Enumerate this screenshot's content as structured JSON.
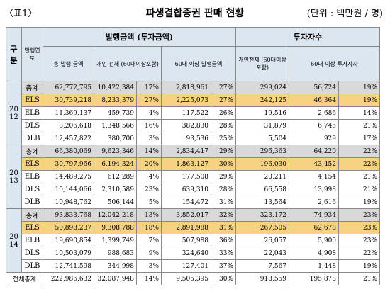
{
  "header": {
    "label": "〈표1〉",
    "title": "파생결합증권 판매 현황",
    "unit": "(단위 : 백만원 / 명)"
  },
  "table": {
    "head": {
      "category": "구분",
      "year": "발행연도",
      "amount": "발행금액 (투자금액)",
      "investors": "투자자수",
      "total_amount": "총 발행 금액",
      "individual_all": "개인 전체 (60대이상포함)",
      "over60_amount": "60대 이상 발행금액",
      "individual_investors": "개인전체 (60대이상포함)",
      "over60_investors": "60대 이상 투자자자"
    },
    "groups": [
      {
        "year": "2012",
        "rows": [
          {
            "type": "총계",
            "cells": [
              "62,772,795",
              "10,422,384",
              "17%",
              "2,818,961",
              "27%",
              "299,024",
              "56,724",
              "19%"
            ]
          },
          {
            "type": "ELS",
            "cells": [
              "30,739,218",
              "8,233,379",
              "27%",
              "2,225,073",
              "27%",
              "242,125",
              "46,364",
              "19%"
            ]
          },
          {
            "type": "ELB",
            "cells": [
              "11,369,137",
              "459,739",
              "4%",
              "117,522",
              "26%",
              "19,516",
              "2,686",
              "14%"
            ]
          },
          {
            "type": "DLS",
            "cells": [
              "8,206,618",
              "1,348,566",
              "16%",
              "382,830",
              "28%",
              "31,879",
              "6,745",
              "21%"
            ]
          },
          {
            "type": "DLB",
            "cells": [
              "12,457,822",
              "380,700",
              "3%",
              "93,536",
              "25%",
              "5,504",
              "929",
              "17%"
            ]
          }
        ]
      },
      {
        "year": "2013",
        "rows": [
          {
            "type": "총계",
            "cells": [
              "66,380,069",
              "9,623,346",
              "14%",
              "2,834,417",
              "29%",
              "296,363",
              "64,220",
              "22%"
            ]
          },
          {
            "type": "ELS",
            "cells": [
              "30,797,966",
              "6,194,324",
              "20%",
              "1,863,127",
              "30%",
              "196,030",
              "43,452",
              "22%"
            ]
          },
          {
            "type": "ELB",
            "cells": [
              "14,489,275",
              "612,289",
              "4%",
              "177,508",
              "29%",
              "20,211",
              "4,154",
              "21%"
            ]
          },
          {
            "type": "DLS",
            "cells": [
              "10,144,066",
              "2,310,589",
              "23%",
              "639,310",
              "28%",
              "66,558",
              "13,998",
              "21%"
            ]
          },
          {
            "type": "DLB",
            "cells": [
              "10,948,762",
              "506,144",
              "5%",
              "154,472",
              "31%",
              "13,564",
              "2,616",
              "19%"
            ]
          }
        ]
      },
      {
        "year": "2014",
        "rows": [
          {
            "type": "총계",
            "cells": [
              "93,833,768",
              "12,042,218",
              "13%",
              "3,852,017",
              "32%",
              "323,172",
              "74,934",
              "23%"
            ]
          },
          {
            "type": "ELS",
            "cells": [
              "50,898,237",
              "9,308,788",
              "18%",
              "2,891,988",
              "31%",
              "267,505",
              "62,678",
              "23%"
            ]
          },
          {
            "type": "ELB",
            "cells": [
              "19,690,854",
              "1,399,749",
              "7%",
              "507,988",
              "36%",
              "26,057",
              "5,900",
              "23%"
            ]
          },
          {
            "type": "DLS",
            "cells": [
              "10,503,079",
              "988,683",
              "9%",
              "324,640",
              "33%",
              "22,043",
              "4,908",
              "22%"
            ]
          },
          {
            "type": "DLB",
            "cells": [
              "12,741,598",
              "344,998",
              "3%",
              "127,401",
              "37%",
              "7,567",
              "1,448",
              "19%"
            ]
          }
        ]
      }
    ],
    "total": {
      "label": "전체총계",
      "cells": [
        "222,986,632",
        "32,087,948",
        "14%",
        "9,505,395",
        "30%",
        "918,559",
        "195,878",
        "21%"
      ]
    }
  }
}
